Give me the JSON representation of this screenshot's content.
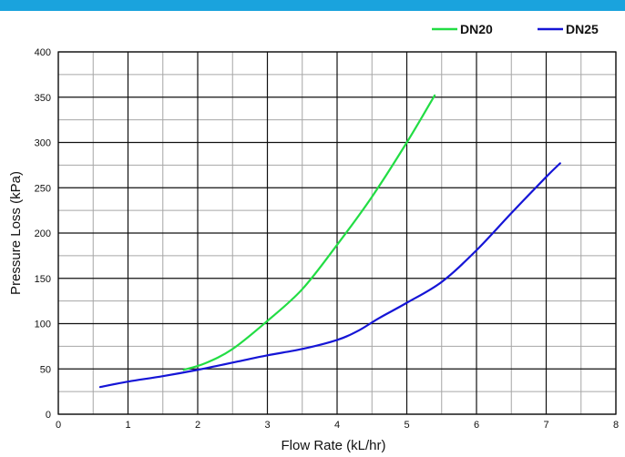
{
  "header": {
    "bar_color": "#1aa3dd"
  },
  "chart_data": {
    "type": "line",
    "xlabel": "Flow Rate (kL/hr)",
    "ylabel": "Pressure Loss (kPa)",
    "xlim": [
      0,
      8
    ],
    "ylim": [
      0,
      400
    ],
    "x_major_ticks": [
      "0",
      "1",
      "2",
      "3",
      "4",
      "5",
      "6",
      "7",
      "8"
    ],
    "y_major_ticks": [
      "0",
      "50",
      "100",
      "150",
      "200",
      "250",
      "300",
      "350",
      "400"
    ],
    "grid": true,
    "legend_position": "top-right",
    "series": [
      {
        "name": "DN20",
        "color": "#22dd44",
        "points": [
          [
            1.8,
            49
          ],
          [
            2.1,
            56
          ],
          [
            2.5,
            72
          ],
          [
            3.0,
            103
          ],
          [
            3.5,
            138
          ],
          [
            4.0,
            187
          ],
          [
            4.5,
            240
          ],
          [
            5.0,
            300
          ],
          [
            5.4,
            352
          ]
        ]
      },
      {
        "name": "DN25",
        "color": "#1515d6",
        "points": [
          [
            0.6,
            30
          ],
          [
            1.0,
            36
          ],
          [
            1.5,
            42
          ],
          [
            2.0,
            49
          ],
          [
            2.5,
            57
          ],
          [
            3.0,
            65
          ],
          [
            3.5,
            72
          ],
          [
            4.0,
            82
          ],
          [
            4.3,
            92
          ],
          [
            4.6,
            106
          ],
          [
            5.0,
            123
          ],
          [
            5.5,
            146
          ],
          [
            6.0,
            181
          ],
          [
            6.5,
            222
          ],
          [
            7.0,
            262
          ],
          [
            7.2,
            277
          ]
        ]
      }
    ]
  }
}
